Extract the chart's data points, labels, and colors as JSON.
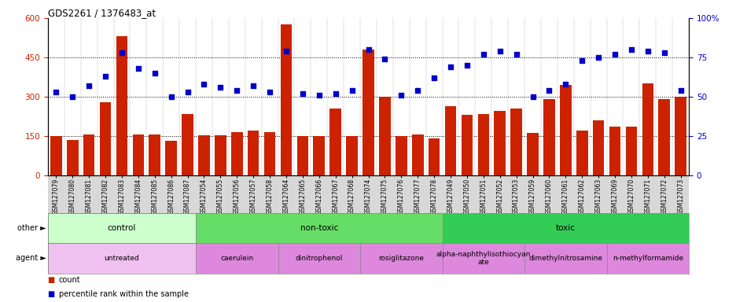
{
  "title": "GDS2261 / 1376483_at",
  "samples": [
    "GSM127079",
    "GSM127080",
    "GSM127081",
    "GSM127082",
    "GSM127083",
    "GSM127084",
    "GSM127085",
    "GSM127086",
    "GSM127087",
    "GSM127054",
    "GSM127055",
    "GSM127056",
    "GSM127057",
    "GSM127058",
    "GSM127064",
    "GSM127065",
    "GSM127066",
    "GSM127067",
    "GSM127068",
    "GSM127074",
    "GSM127075",
    "GSM127076",
    "GSM127077",
    "GSM127078",
    "GSM127049",
    "GSM127050",
    "GSM127051",
    "GSM127052",
    "GSM127053",
    "GSM127059",
    "GSM127060",
    "GSM127061",
    "GSM127062",
    "GSM127063",
    "GSM127069",
    "GSM127070",
    "GSM127071",
    "GSM127072",
    "GSM127073"
  ],
  "counts": [
    150,
    135,
    155,
    280,
    530,
    155,
    155,
    130,
    235,
    153,
    153,
    165,
    170,
    163,
    575,
    148,
    148,
    255,
    148,
    480,
    300,
    148,
    155,
    140,
    265,
    230,
    235,
    245,
    255,
    160,
    290,
    345,
    170,
    210,
    185,
    185,
    350,
    290,
    300
  ],
  "percentile": [
    53,
    50,
    57,
    63,
    78,
    68,
    65,
    50,
    53,
    58,
    56,
    54,
    57,
    53,
    79,
    52,
    51,
    52,
    54,
    80,
    74,
    51,
    54,
    62,
    69,
    70,
    77,
    79,
    77,
    50,
    54,
    58,
    73,
    75,
    77,
    80,
    79,
    78,
    54
  ],
  "bar_color": "#cc2200",
  "dot_color": "#0000cc",
  "ylim_left": [
    0,
    600
  ],
  "ylim_right": [
    0,
    100
  ],
  "yticks_left": [
    0,
    150,
    300,
    450,
    600
  ],
  "yticks_right": [
    0,
    25,
    50,
    75,
    100
  ],
  "hlines": [
    150,
    300,
    450
  ],
  "groups_other": [
    {
      "label": "control",
      "start": 0,
      "end": 9,
      "color": "#ccffcc"
    },
    {
      "label": "non-toxic",
      "start": 9,
      "end": 24,
      "color": "#66dd66"
    },
    {
      "label": "toxic",
      "start": 24,
      "end": 39,
      "color": "#33cc55"
    }
  ],
  "groups_agent": [
    {
      "label": "untreated",
      "start": 0,
      "end": 9,
      "color": "#f0c0f0"
    },
    {
      "label": "caerulein",
      "start": 9,
      "end": 14,
      "color": "#dd88dd"
    },
    {
      "label": "dinitrophenol",
      "start": 14,
      "end": 19,
      "color": "#dd88dd"
    },
    {
      "label": "rosiglitazone",
      "start": 19,
      "end": 24,
      "color": "#dd88dd"
    },
    {
      "label": "alpha-naphthylisothiocyan\nate",
      "start": 24,
      "end": 29,
      "color": "#dd88dd"
    },
    {
      "label": "dimethylnitrosamine",
      "start": 29,
      "end": 34,
      "color": "#dd88dd"
    },
    {
      "label": "n-methylformamide",
      "start": 34,
      "end": 39,
      "color": "#dd88dd"
    }
  ],
  "legend_items": [
    {
      "label": "count",
      "color": "#cc2200"
    },
    {
      "label": "percentile rank within the sample",
      "color": "#0000cc"
    }
  ],
  "bg_color": "#ffffff",
  "tick_area_color": "#e0e0e0"
}
